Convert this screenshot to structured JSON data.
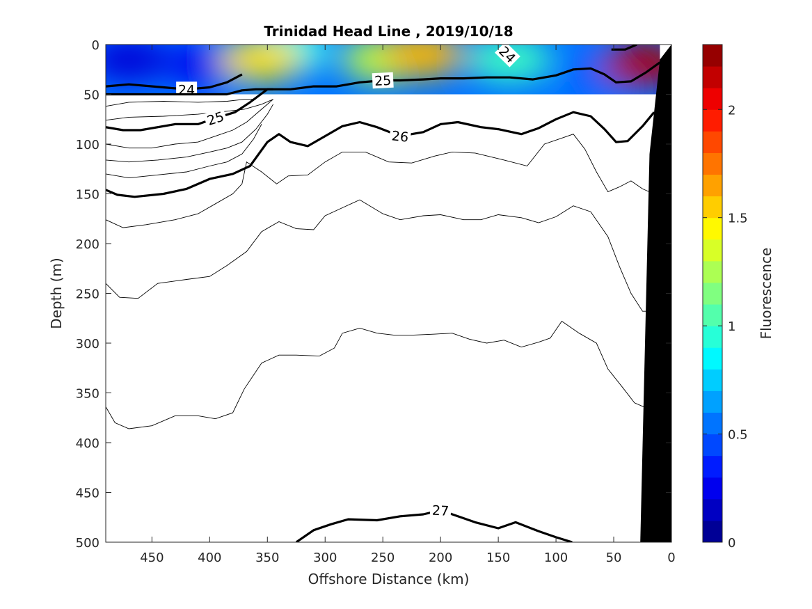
{
  "chart_data": {
    "type": "contour",
    "title": "Trinidad Head Line , 2019/10/18",
    "xlabel": "Offshore Distance (km)",
    "ylabel": "Depth (m)",
    "xlim": [
      490,
      0
    ],
    "ylim": [
      500,
      0
    ],
    "x_reversed": true,
    "y_reversed": true,
    "xticks": [
      450,
      400,
      350,
      300,
      250,
      200,
      150,
      100,
      50,
      0
    ],
    "yticks": [
      0,
      50,
      100,
      150,
      200,
      250,
      300,
      350,
      400,
      450,
      500
    ],
    "colorbar": {
      "label": "Fluorescence",
      "range": [
        0,
        2.3
      ],
      "ticks": [
        0,
        0.5,
        1,
        1.5,
        2
      ],
      "colormap": "jet",
      "levels": 23
    },
    "fluorescence_field": {
      "depth_range": [
        0,
        50
      ],
      "x_range": [
        490,
        10
      ],
      "patches": [
        {
          "x": 470,
          "depth": 15,
          "value": 0.2
        },
        {
          "x": 400,
          "depth": 20,
          "value": 0.25
        },
        {
          "x": 330,
          "depth": 5,
          "value": 0.9
        },
        {
          "x": 355,
          "depth": 15,
          "value": 1.5
        },
        {
          "x": 250,
          "depth": 15,
          "value": 1.3
        },
        {
          "x": 215,
          "depth": 10,
          "value": 1.6
        },
        {
          "x": 140,
          "depth": 15,
          "value": 1.0
        },
        {
          "x": 60,
          "depth": 30,
          "value": 0.5
        },
        {
          "x": 25,
          "depth": 20,
          "value": 2.2
        }
      ]
    },
    "isopycnals": [
      {
        "level": 24,
        "label": "24",
        "bold": true,
        "points": [
          [
            490,
            42
          ],
          [
            470,
            40
          ],
          [
            440,
            43
          ],
          [
            420,
            45
          ],
          [
            400,
            43
          ],
          [
            385,
            38
          ],
          [
            372,
            30
          ]
        ]
      },
      {
        "level": 24,
        "label": "24",
        "bold": true,
        "points": [
          [
            145,
            5
          ],
          [
            142,
            10
          ],
          [
            138,
            13
          ]
        ]
      },
      {
        "level": 24,
        "label": "",
        "bold": true,
        "points": [
          [
            52,
            5
          ],
          [
            40,
            5
          ],
          [
            30,
            0
          ]
        ]
      },
      {
        "level": 25,
        "label": "25",
        "bold": true,
        "points": [
          [
            490,
            50
          ],
          [
            480,
            50
          ],
          [
            465,
            50
          ],
          [
            450,
            50
          ],
          [
            430,
            50
          ],
          [
            415,
            50
          ],
          [
            400,
            50
          ],
          [
            385,
            50
          ],
          [
            372,
            46
          ],
          [
            360,
            45
          ],
          [
            345,
            45
          ],
          [
            330,
            45
          ],
          [
            310,
            42
          ],
          [
            290,
            42
          ],
          [
            270,
            38
          ],
          [
            250,
            36
          ],
          [
            235,
            36
          ],
          [
            215,
            35
          ],
          [
            200,
            34
          ],
          [
            180,
            34
          ],
          [
            160,
            33
          ],
          [
            140,
            33
          ],
          [
            120,
            35
          ],
          [
            100,
            31
          ],
          [
            85,
            25
          ],
          [
            70,
            24
          ],
          [
            58,
            30
          ],
          [
            48,
            38
          ],
          [
            35,
            37
          ],
          [
            22,
            28
          ],
          [
            10,
            18
          ]
        ]
      },
      {
        "level": 25,
        "label": "25",
        "bold": true,
        "points": [
          [
            490,
            83
          ],
          [
            475,
            86
          ],
          [
            460,
            86
          ],
          [
            430,
            80
          ],
          [
            410,
            80
          ],
          [
            395,
            74
          ],
          [
            378,
            68
          ],
          [
            365,
            58
          ],
          [
            350,
            45
          ],
          [
            345,
            45
          ]
        ]
      },
      {
        "level": 26,
        "label": "26",
        "bold": true,
        "points": [
          [
            490,
            146
          ],
          [
            480,
            151
          ],
          [
            465,
            153
          ],
          [
            440,
            150
          ],
          [
            420,
            145
          ],
          [
            400,
            135
          ],
          [
            380,
            130
          ],
          [
            365,
            122
          ],
          [
            350,
            98
          ],
          [
            340,
            90
          ],
          [
            330,
            98
          ],
          [
            315,
            102
          ],
          [
            300,
            92
          ],
          [
            285,
            82
          ],
          [
            270,
            78
          ],
          [
            255,
            83
          ],
          [
            235,
            92
          ],
          [
            215,
            88
          ],
          [
            200,
            80
          ],
          [
            185,
            78
          ],
          [
            165,
            83
          ],
          [
            150,
            85
          ],
          [
            130,
            90
          ],
          [
            115,
            84
          ],
          [
            100,
            75
          ],
          [
            85,
            68
          ],
          [
            70,
            72
          ],
          [
            58,
            85
          ],
          [
            48,
            98
          ],
          [
            38,
            97
          ],
          [
            25,
            82
          ],
          [
            15,
            68
          ]
        ]
      },
      {
        "level": 27,
        "label": "27",
        "bold": true,
        "points": [
          [
            325,
            500
          ],
          [
            310,
            488
          ],
          [
            295,
            482
          ],
          [
            280,
            477
          ],
          [
            255,
            478
          ],
          [
            235,
            474
          ],
          [
            215,
            472
          ],
          [
            200,
            468
          ],
          [
            185,
            474
          ],
          [
            170,
            480
          ],
          [
            150,
            486
          ],
          [
            135,
            480
          ],
          [
            115,
            489
          ],
          [
            100,
            495
          ],
          [
            86,
            500
          ]
        ]
      }
    ],
    "thin_contours": [
      [
        [
          490,
          62
        ],
        [
          470,
          58
        ],
        [
          440,
          57
        ],
        [
          410,
          58
        ],
        [
          385,
          57
        ],
        [
          370,
          55
        ],
        [
          360,
          55
        ]
      ],
      [
        [
          490,
          76
        ],
        [
          470,
          73
        ],
        [
          440,
          72
        ],
        [
          410,
          70
        ],
        [
          385,
          67
        ],
        [
          370,
          65
        ],
        [
          355,
          60
        ],
        [
          345,
          55
        ]
      ],
      [
        [
          490,
          100
        ],
        [
          470,
          104
        ],
        [
          450,
          104
        ],
        [
          430,
          100
        ],
        [
          410,
          98
        ],
        [
          395,
          92
        ],
        [
          380,
          86
        ],
        [
          368,
          78
        ],
        [
          355,
          65
        ],
        [
          345,
          55
        ]
      ],
      [
        [
          490,
          116
        ],
        [
          470,
          118
        ],
        [
          445,
          116
        ],
        [
          420,
          113
        ],
        [
          400,
          108
        ],
        [
          385,
          104
        ],
        [
          372,
          98
        ],
        [
          360,
          85
        ],
        [
          350,
          70
        ],
        [
          345,
          60
        ]
      ],
      [
        [
          490,
          130
        ],
        [
          470,
          134
        ],
        [
          445,
          131
        ],
        [
          420,
          128
        ],
        [
          400,
          122
        ],
        [
          385,
          118
        ],
        [
          372,
          110
        ],
        [
          362,
          95
        ],
        [
          355,
          80
        ]
      ],
      [
        [
          490,
          176
        ],
        [
          475,
          184
        ],
        [
          455,
          181
        ],
        [
          430,
          176
        ],
        [
          410,
          170
        ],
        [
          395,
          160
        ],
        [
          380,
          150
        ],
        [
          372,
          140
        ],
        [
          368,
          118
        ],
        [
          355,
          128
        ],
        [
          342,
          140
        ],
        [
          332,
          132
        ],
        [
          315,
          131
        ],
        [
          300,
          118
        ],
        [
          285,
          108
        ],
        [
          265,
          108
        ],
        [
          245,
          118
        ],
        [
          225,
          119
        ],
        [
          205,
          112
        ],
        [
          190,
          108
        ],
        [
          170,
          109
        ],
        [
          145,
          116
        ],
        [
          125,
          122
        ],
        [
          110,
          100
        ],
        [
          95,
          94
        ],
        [
          85,
          90
        ],
        [
          75,
          105
        ],
        [
          65,
          128
        ],
        [
          55,
          148
        ],
        [
          45,
          143
        ],
        [
          35,
          137
        ],
        [
          25,
          145
        ],
        [
          15,
          150
        ]
      ],
      [
        [
          490,
          240
        ],
        [
          478,
          254
        ],
        [
          462,
          255
        ],
        [
          445,
          240
        ],
        [
          420,
          236
        ],
        [
          400,
          233
        ],
        [
          385,
          222
        ],
        [
          368,
          208
        ],
        [
          355,
          188
        ],
        [
          340,
          178
        ],
        [
          325,
          185
        ],
        [
          310,
          186
        ],
        [
          300,
          172
        ],
        [
          285,
          164
        ],
        [
          270,
          156
        ],
        [
          250,
          170
        ],
        [
          235,
          176
        ],
        [
          215,
          172
        ],
        [
          200,
          171
        ],
        [
          180,
          176
        ],
        [
          165,
          176
        ],
        [
          150,
          171
        ],
        [
          130,
          174
        ],
        [
          115,
          179
        ],
        [
          100,
          173
        ],
        [
          85,
          162
        ],
        [
          70,
          168
        ],
        [
          55,
          193
        ],
        [
          45,
          223
        ],
        [
          35,
          250
        ],
        [
          25,
          268
        ],
        [
          15,
          268
        ]
      ],
      [
        [
          490,
          364
        ],
        [
          482,
          380
        ],
        [
          470,
          386
        ],
        [
          450,
          383
        ],
        [
          430,
          373
        ],
        [
          410,
          373
        ],
        [
          395,
          376
        ],
        [
          380,
          370
        ],
        [
          370,
          346
        ],
        [
          355,
          320
        ],
        [
          340,
          312
        ],
        [
          325,
          312
        ],
        [
          305,
          313
        ],
        [
          292,
          305
        ],
        [
          285,
          290
        ],
        [
          270,
          285
        ],
        [
          255,
          290
        ],
        [
          240,
          292
        ],
        [
          225,
          292
        ],
        [
          205,
          291
        ],
        [
          190,
          290
        ],
        [
          175,
          296
        ],
        [
          160,
          300
        ],
        [
          145,
          297
        ],
        [
          130,
          304
        ],
        [
          115,
          299
        ],
        [
          105,
          295
        ],
        [
          95,
          278
        ],
        [
          80,
          290
        ],
        [
          65,
          300
        ],
        [
          55,
          326
        ],
        [
          42,
          345
        ],
        [
          32,
          360
        ],
        [
          20,
          366
        ]
      ]
    ],
    "coast": [
      [
        27,
        500
      ],
      [
        19,
        110
      ],
      [
        10,
        15
      ],
      [
        0,
        0
      ],
      [
        0,
        500
      ]
    ]
  }
}
